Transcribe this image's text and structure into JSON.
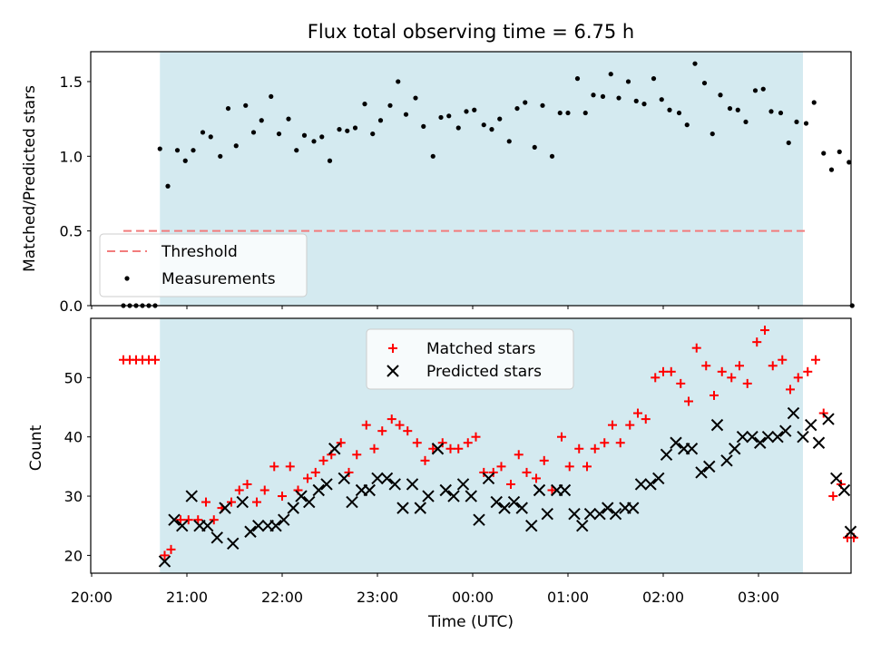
{
  "figure": {
    "title": "Flux total observing time = 6.75 h"
  },
  "chart_data": [
    {
      "type": "scatter",
      "ylabel": "Matched/Predicted stars",
      "ylim": [
        0.0,
        1.7
      ],
      "xlim": [
        "19:57",
        "23:59 next day+03:59"
      ],
      "yticks": [
        "0.0",
        "0.5",
        "1.0",
        "1.5"
      ],
      "shaded_span": {
        "start": "20:43",
        "end": "03:28",
        "color": "#d4eaf0"
      },
      "threshold": {
        "name": "Threshold",
        "value": 0.5,
        "x_start": "20:20",
        "x_end": "03:30",
        "color": "#f27c7c"
      },
      "legend": {
        "position": "lower-left",
        "entries": [
          "Threshold",
          "Measurements"
        ]
      },
      "series": [
        {
          "name": "Measurements",
          "color": "#000000",
          "marker": "dot",
          "points": [
            [
              "20:20",
              0.0
            ],
            [
              "20:24",
              0.0
            ],
            [
              "20:28",
              0.0
            ],
            [
              "20:32",
              0.0
            ],
            [
              "20:36",
              0.0
            ],
            [
              "20:40",
              0.0
            ],
            [
              "20:43",
              1.05
            ],
            [
              "20:48",
              0.8
            ],
            [
              "20:54",
              1.04
            ],
            [
              "20:59",
              0.97
            ],
            [
              "21:04",
              1.04
            ],
            [
              "21:10",
              1.16
            ],
            [
              "21:15",
              1.13
            ],
            [
              "21:21",
              1.0
            ],
            [
              "21:26",
              1.32
            ],
            [
              "21:31",
              1.07
            ],
            [
              "21:37",
              1.34
            ],
            [
              "21:42",
              1.16
            ],
            [
              "21:47",
              1.24
            ],
            [
              "21:53",
              1.4
            ],
            [
              "21:58",
              1.15
            ],
            [
              "22:04",
              1.25
            ],
            [
              "22:09",
              1.04
            ],
            [
              "22:14",
              1.14
            ],
            [
              "22:20",
              1.1
            ],
            [
              "22:25",
              1.13
            ],
            [
              "22:30",
              0.97
            ],
            [
              "22:36",
              1.18
            ],
            [
              "22:41",
              1.17
            ],
            [
              "22:46",
              1.19
            ],
            [
              "22:52",
              1.35
            ],
            [
              "22:57",
              1.15
            ],
            [
              "23:02",
              1.24
            ],
            [
              "23:08",
              1.34
            ],
            [
              "23:13",
              1.5
            ],
            [
              "23:18",
              1.28
            ],
            [
              "23:24",
              1.39
            ],
            [
              "23:29",
              1.2
            ],
            [
              "23:35",
              1.0
            ],
            [
              "23:40",
              1.26
            ],
            [
              "23:45",
              1.27
            ],
            [
              "23:51",
              1.19
            ],
            [
              "23:56",
              1.3
            ],
            [
              "00:01",
              1.31
            ],
            [
              "00:07",
              1.21
            ],
            [
              "00:12",
              1.18
            ],
            [
              "00:17",
              1.25
            ],
            [
              "00:23",
              1.1
            ],
            [
              "00:28",
              1.32
            ],
            [
              "00:33",
              1.36
            ],
            [
              "00:39",
              1.06
            ],
            [
              "00:44",
              1.34
            ],
            [
              "00:50",
              1.0
            ],
            [
              "00:55",
              1.29
            ],
            [
              "01:00",
              1.29
            ],
            [
              "01:06",
              1.52
            ],
            [
              "01:11",
              1.29
            ],
            [
              "01:16",
              1.41
            ],
            [
              "01:22",
              1.4
            ],
            [
              "01:27",
              1.55
            ],
            [
              "01:32",
              1.39
            ],
            [
              "01:38",
              1.5
            ],
            [
              "01:43",
              1.37
            ],
            [
              "01:48",
              1.35
            ],
            [
              "01:54",
              1.52
            ],
            [
              "01:59",
              1.38
            ],
            [
              "02:04",
              1.31
            ],
            [
              "02:10",
              1.29
            ],
            [
              "02:15",
              1.21
            ],
            [
              "02:20",
              1.62
            ],
            [
              "02:26",
              1.49
            ],
            [
              "02:31",
              1.15
            ],
            [
              "02:36",
              1.41
            ],
            [
              "02:42",
              1.32
            ],
            [
              "02:47",
              1.31
            ],
            [
              "02:52",
              1.23
            ],
            [
              "02:58",
              1.44
            ],
            [
              "03:03",
              1.45
            ],
            [
              "03:08",
              1.3
            ],
            [
              "03:14",
              1.29
            ],
            [
              "03:19",
              1.09
            ],
            [
              "03:24",
              1.23
            ],
            [
              "03:30",
              1.22
            ],
            [
              "03:35",
              1.36
            ],
            [
              "03:41",
              1.02
            ],
            [
              "03:46",
              0.91
            ],
            [
              "03:51",
              1.03
            ],
            [
              "03:57",
              0.96
            ],
            [
              "03:59",
              0.0
            ]
          ]
        }
      ]
    },
    {
      "type": "scatter",
      "ylabel": "Count",
      "xlabel": "Time (UTC)",
      "ylim": [
        17,
        60
      ],
      "yticks": [
        "20",
        "30",
        "40",
        "50"
      ],
      "xticks": [
        "20:00",
        "21:00",
        "22:00",
        "23:00",
        "00:00",
        "01:00",
        "02:00",
        "03:00"
      ],
      "legend": {
        "position": "top-center",
        "entries": [
          "Matched stars",
          "Predicted stars"
        ]
      },
      "series": [
        {
          "name": "Matched stars",
          "color": "#ff0000",
          "marker": "plus",
          "points": [
            [
              "20:20",
              53
            ],
            [
              "20:24",
              53
            ],
            [
              "20:28",
              53
            ],
            [
              "20:32",
              53
            ],
            [
              "20:36",
              53
            ],
            [
              "20:40",
              53
            ],
            [
              "20:46",
              20
            ],
            [
              "20:50",
              21
            ],
            [
              "20:56",
              26
            ],
            [
              "21:01",
              26
            ],
            [
              "21:07",
              26
            ],
            [
              "21:12",
              29
            ],
            [
              "21:17",
              26
            ],
            [
              "21:22",
              28
            ],
            [
              "21:28",
              29
            ],
            [
              "21:33",
              31
            ],
            [
              "21:38",
              32
            ],
            [
              "21:44",
              29
            ],
            [
              "21:49",
              31
            ],
            [
              "21:55",
              35
            ],
            [
              "22:00",
              30
            ],
            [
              "22:05",
              35
            ],
            [
              "22:10",
              31
            ],
            [
              "22:16",
              33
            ],
            [
              "22:21",
              34
            ],
            [
              "22:26",
              36
            ],
            [
              "22:31",
              37
            ],
            [
              "22:37",
              39
            ],
            [
              "22:42",
              34
            ],
            [
              "22:47",
              37
            ],
            [
              "22:53",
              42
            ],
            [
              "22:58",
              38
            ],
            [
              "23:03",
              41
            ],
            [
              "23:09",
              43
            ],
            [
              "23:14",
              42
            ],
            [
              "23:19",
              41
            ],
            [
              "23:25",
              39
            ],
            [
              "23:30",
              36
            ],
            [
              "23:35",
              38
            ],
            [
              "23:41",
              39
            ],
            [
              "23:46",
              38
            ],
            [
              "23:51",
              38
            ],
            [
              "23:57",
              39
            ],
            [
              "00:02",
              40
            ],
            [
              "00:07",
              34
            ],
            [
              "00:13",
              34
            ],
            [
              "00:18",
              35
            ],
            [
              "00:24",
              32
            ],
            [
              "00:29",
              37
            ],
            [
              "00:34",
              34
            ],
            [
              "00:40",
              33
            ],
            [
              "00:45",
              36
            ],
            [
              "00:50",
              31
            ],
            [
              "00:56",
              40
            ],
            [
              "01:01",
              35
            ],
            [
              "01:07",
              38
            ],
            [
              "01:12",
              35
            ],
            [
              "01:17",
              38
            ],
            [
              "01:23",
              39
            ],
            [
              "01:28",
              42
            ],
            [
              "01:33",
              39
            ],
            [
              "01:39",
              42
            ],
            [
              "01:44",
              44
            ],
            [
              "01:49",
              43
            ],
            [
              "01:55",
              50
            ],
            [
              "02:00",
              51
            ],
            [
              "02:05",
              51
            ],
            [
              "02:11",
              49
            ],
            [
              "02:16",
              46
            ],
            [
              "02:21",
              55
            ],
            [
              "02:27",
              52
            ],
            [
              "02:32",
              47
            ],
            [
              "02:37",
              51
            ],
            [
              "02:43",
              50
            ],
            [
              "02:48",
              52
            ],
            [
              "02:53",
              49
            ],
            [
              "02:59",
              56
            ],
            [
              "03:04",
              58
            ],
            [
              "03:09",
              52
            ],
            [
              "03:15",
              53
            ],
            [
              "03:20",
              48
            ],
            [
              "03:25",
              50
            ],
            [
              "03:31",
              51
            ],
            [
              "03:36",
              53
            ],
            [
              "03:41",
              44
            ],
            [
              "03:47",
              30
            ],
            [
              "03:52",
              32
            ],
            [
              "03:56",
              23
            ],
            [
              "04:00",
              23
            ]
          ]
        },
        {
          "name": "Predicted stars",
          "color": "#000000",
          "marker": "x",
          "points": [
            [
              "20:46",
              19
            ],
            [
              "20:52",
              26
            ],
            [
              "20:57",
              25
            ],
            [
              "21:03",
              30
            ],
            [
              "21:08",
              25
            ],
            [
              "21:13",
              25
            ],
            [
              "21:19",
              23
            ],
            [
              "21:24",
              28
            ],
            [
              "21:29",
              22
            ],
            [
              "21:35",
              29
            ],
            [
              "21:40",
              24
            ],
            [
              "21:45",
              25
            ],
            [
              "21:51",
              25
            ],
            [
              "21:56",
              25
            ],
            [
              "22:01",
              26
            ],
            [
              "22:07",
              28
            ],
            [
              "22:12",
              30
            ],
            [
              "22:17",
              29
            ],
            [
              "22:23",
              31
            ],
            [
              "22:28",
              32
            ],
            [
              "22:33",
              38
            ],
            [
              "22:39",
              33
            ],
            [
              "22:44",
              29
            ],
            [
              "22:50",
              31
            ],
            [
              "22:55",
              31
            ],
            [
              "23:00",
              33
            ],
            [
              "23:06",
              33
            ],
            [
              "23:11",
              32
            ],
            [
              "23:16",
              28
            ],
            [
              "23:22",
              32
            ],
            [
              "23:27",
              28
            ],
            [
              "23:32",
              30
            ],
            [
              "23:38",
              38
            ],
            [
              "23:43",
              31
            ],
            [
              "23:48",
              30
            ],
            [
              "23:54",
              32
            ],
            [
              "23:59",
              30
            ],
            [
              "00:04",
              26
            ],
            [
              "00:10",
              33
            ],
            [
              "00:15",
              29
            ],
            [
              "00:20",
              28
            ],
            [
              "00:26",
              29
            ],
            [
              "00:31",
              28
            ],
            [
              "00:37",
              25
            ],
            [
              "00:42",
              31
            ],
            [
              "00:47",
              27
            ],
            [
              "00:53",
              31
            ],
            [
              "00:58",
              31
            ],
            [
              "01:04",
              27
            ],
            [
              "01:09",
              25
            ],
            [
              "01:14",
              27
            ],
            [
              "01:20",
              27
            ],
            [
              "01:25",
              28
            ],
            [
              "01:30",
              27
            ],
            [
              "01:36",
              28
            ],
            [
              "01:41",
              28
            ],
            [
              "01:46",
              32
            ],
            [
              "01:52",
              32
            ],
            [
              "01:57",
              33
            ],
            [
              "02:02",
              37
            ],
            [
              "02:08",
              39
            ],
            [
              "02:13",
              38
            ],
            [
              "02:18",
              38
            ],
            [
              "02:24",
              34
            ],
            [
              "02:29",
              35
            ],
            [
              "02:34",
              42
            ],
            [
              "02:40",
              36
            ],
            [
              "02:45",
              38
            ],
            [
              "02:50",
              40
            ],
            [
              "02:56",
              40
            ],
            [
              "03:01",
              39
            ],
            [
              "03:06",
              40
            ],
            [
              "03:12",
              40
            ],
            [
              "03:17",
              41
            ],
            [
              "03:22",
              44
            ],
            [
              "03:28",
              40
            ],
            [
              "03:33",
              42
            ],
            [
              "03:38",
              39
            ],
            [
              "03:44",
              43
            ],
            [
              "03:49",
              33
            ],
            [
              "03:54",
              31
            ],
            [
              "03:58",
              24
            ]
          ]
        }
      ]
    }
  ]
}
